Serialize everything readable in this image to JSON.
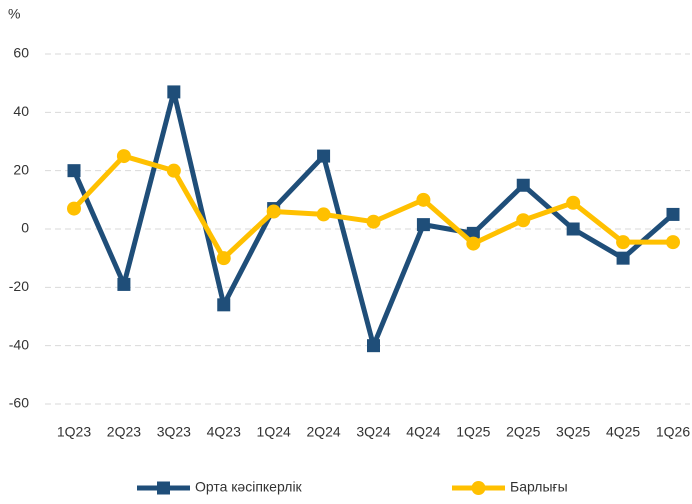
{
  "chart_data": {
    "type": "line",
    "y_label": "%",
    "categories": [
      "1Q23",
      "2Q23",
      "3Q23",
      "4Q23",
      "1Q24",
      "2Q24",
      "3Q24",
      "4Q24",
      "1Q25",
      "2Q25",
      "3Q25",
      "4Q25",
      "1Q26"
    ],
    "series": [
      {
        "name": "Орта кәсіпкерлік",
        "color": "#1f4e79",
        "marker": "square",
        "values": [
          20,
          -19,
          47,
          -26,
          7,
          25,
          -40,
          1.5,
          -1.5,
          15,
          0,
          -10,
          5
        ]
      },
      {
        "name": "Барлығы",
        "color": "#ffc000",
        "marker": "circle",
        "values": [
          7,
          25,
          20,
          -10,
          6,
          5,
          2.5,
          10,
          -5,
          3,
          9,
          -4.5,
          -4.5
        ]
      }
    ],
    "ylim": [
      -60,
      60
    ],
    "yticks": [
      -60,
      -40,
      -20,
      0,
      20,
      40,
      60
    ],
    "grid": true,
    "legend": "bottom"
  }
}
